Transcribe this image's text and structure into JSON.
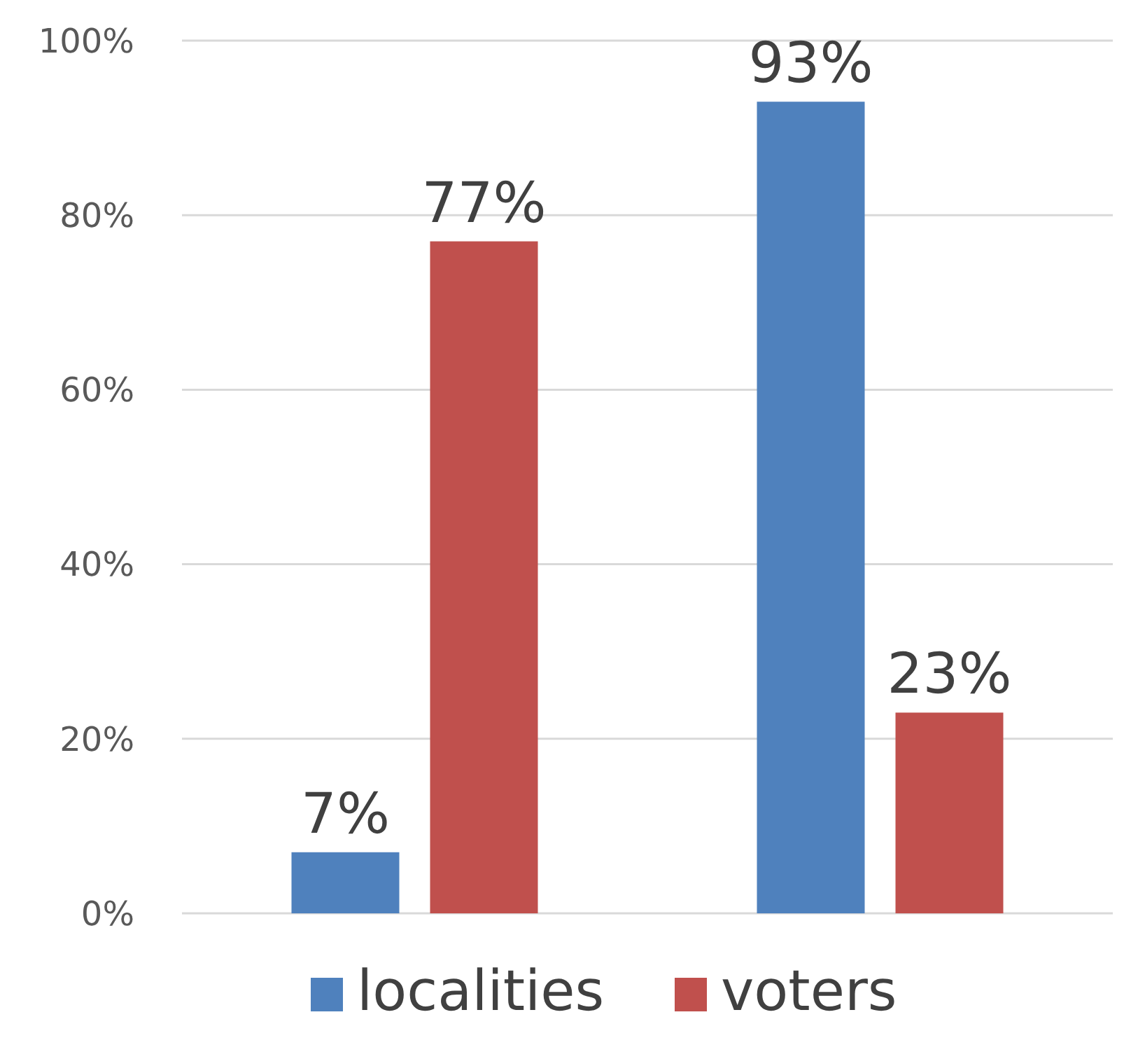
{
  "chart_data": {
    "type": "bar",
    "categories": [
      null,
      null
    ],
    "series": [
      {
        "name": "localities",
        "color": "#4f81bd",
        "values": [
          7,
          93
        ],
        "value_labels": [
          "7%",
          "93%"
        ]
      },
      {
        "name": "voters",
        "color": "#c0504d",
        "values": [
          77,
          23
        ],
        "value_labels": [
          "77%",
          "23%"
        ]
      }
    ],
    "ylim": [
      0,
      100
    ],
    "yticks": [
      {
        "value": 0,
        "label": "0%"
      },
      {
        "value": 20,
        "label": "20%"
      },
      {
        "value": 40,
        "label": "40%"
      },
      {
        "value": 60,
        "label": "60%"
      },
      {
        "value": 80,
        "label": "80%"
      },
      {
        "value": 100,
        "label": "100%"
      }
    ],
    "grid": "y",
    "legend": "bottom"
  }
}
